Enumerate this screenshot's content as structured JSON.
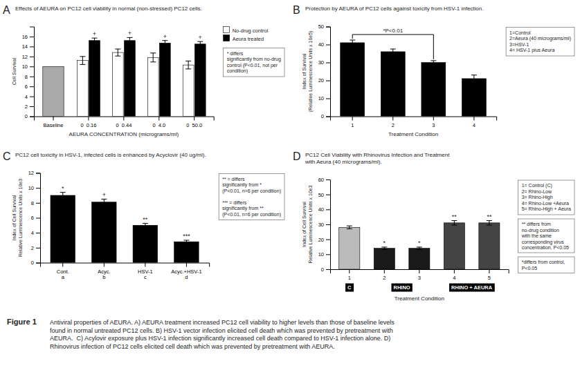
{
  "title": "Figure 1",
  "caption": "Antiviral properties of AEURA. A) AEURA treatment increased PC12 cell viability to higher levels than those of baseline levels\nfound in normal untreated PC12 cells. B) HSV-1 vector infection elicited cell death which was prevented by pretreatment with\nAEURA.  C) Acylovir exposure plus HSV-1 infection significantly increased cell death compared to HSV-1 infection alone. D)\nRhinovirus infection of PC12 cells elicited cell death which was prevented by pretreatment with AEURA.",
  "chart_data": [
    {
      "type": "bar",
      "panel_label": "A",
      "title": "Effects of AEURA on PC12 cell viability in normal (non-stressed) PC12 cells.",
      "xlabel": "AEURA CONCENTRATION (micrograms/ml)",
      "ylabel": "Cell Survival",
      "categories": [
        "Baseline",
        "0  0.16",
        "0  0.44",
        "0  4.0",
        "0  50.0"
      ],
      "series": [
        {
          "color": "#aaaaaa",
          "values": [
            10.0,
            null,
            null,
            null,
            null
          ]
        },
        {
          "name": "No-drug control",
          "color": "#ffffff",
          "values": [
            null,
            11.2,
            12.8,
            11.8,
            10.3
          ],
          "errors": [
            null,
            0.8,
            0.7,
            0.9,
            0.8
          ]
        },
        {
          "name": "Aeura treated",
          "color": "#000000",
          "values": [
            null,
            15.2,
            15.2,
            14.7,
            14.5
          ],
          "errors": [
            null,
            0.5,
            0.6,
            0.5,
            0.5
          ],
          "bar_annotations": [
            null,
            "+",
            "+",
            "+",
            "+"
          ]
        }
      ],
      "ylim": [
        0,
        18
      ],
      "yticks": [
        0,
        2,
        4,
        6,
        8,
        10,
        12,
        14,
        16
      ],
      "annotations": [
        "* differs\nsignificantly from no-drug\ncontrol (P<0.01, not per\ncondition)"
      ]
    },
    {
      "type": "bar",
      "panel_label": "B",
      "title": "Protection by AEURA of PC12 cells against toxicity from HSV-1 infection.",
      "xlabel": "Treatment Condition",
      "ylabel": "Index of Survival\n(Relative Luminescence Units x 10e5)",
      "categories": [
        "1",
        "2",
        "3",
        "4"
      ],
      "values": [
        41,
        36,
        30,
        21
      ],
      "errors": [
        1.5,
        1.5,
        1.0,
        2.0
      ],
      "color": "#000000",
      "ylim": [
        0,
        50
      ],
      "yticks": [
        0,
        10,
        20,
        30,
        40,
        50
      ],
      "annotations": [
        {
          "text": "*P<0.01",
          "between": [
            "1",
            "3"
          ]
        },
        "1=Control\n2=Aeura (40 micrograms/ml)\n3=HSV-1\n4= HSV-1 plus Aeura"
      ]
    },
    {
      "type": "bar",
      "panel_label": "C",
      "title": "PC12 cell toxicity in HSV-1, infected cells is enhanced by Acyclovir (40 ug/ml).",
      "ylabel": "Index of Cell Survival\nRelative Luminescence Units x 10e3",
      "categories": [
        "Cont.\na",
        "Acyc.\nb",
        "HSV-1\nc",
        "Acyc.+HSV-1\nd"
      ],
      "values": [
        9.0,
        8.1,
        5.0,
        2.8
      ],
      "errors": [
        0.4,
        0.4,
        0.25,
        0.2
      ],
      "color": "#000000",
      "bar_annotations": [
        "*",
        "+",
        "**",
        "***"
      ],
      "ylim": [
        0,
        12
      ],
      "yticks": [
        0,
        2,
        4,
        6,
        8,
        10,
        12
      ],
      "annotations": [
        "** = differs\nsignificantly from *\n(P<0.01, n=6 per condition)\n\n*** = differs\nsignificantly from **\n(P<0.01, n=6 per condition)"
      ]
    },
    {
      "type": "bar",
      "panel_label": "D",
      "title": "PC12 Cell Viability with Rhinovirus Infection and Treatment\nwith Aeura (40 micrograms/ml).",
      "xlabel": "Treatment Condition",
      "ylabel": "Index of Cell Survival\nRelative Luminescence Units x 10e3",
      "categories": [
        "1",
        "2",
        "3",
        "4",
        "5"
      ],
      "values": [
        28,
        14,
        14,
        31,
        31
      ],
      "errors": [
        1.0,
        0.8,
        0.8,
        1.5,
        1.5
      ],
      "colors": [
        "#bbbbbb",
        "#1a1a1a",
        "#1a1a1a",
        "#444444",
        "#444444"
      ],
      "bar_annotations": [
        null,
        "*",
        "*",
        "**",
        "**"
      ],
      "groups": [
        {
          "label": "C",
          "categories": [
            "1"
          ]
        },
        {
          "label": "RHINO",
          "categories": [
            "2",
            "3"
          ]
        },
        {
          "label": "RHINO + AEURA",
          "categories": [
            "4",
            "5"
          ]
        }
      ],
      "ylim": [
        0,
        60
      ],
      "yticks": [
        0,
        10,
        20,
        30,
        40,
        50,
        60
      ],
      "annotations": [
        "1= Control (C)\n2= Rhino-Low\n3= Rhino-High\n4= Rhino-Low +Aeura\n5= Rhino-High + Aeura",
        "** differs from\nno-drug condition\nwith the same\ncorresponding virus\nconcentration, P<0.05",
        "*differs from control,\nP<0.05"
      ]
    }
  ]
}
